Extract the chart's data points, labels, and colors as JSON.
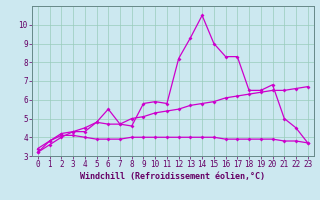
{
  "title": "",
  "xlabel": "Windchill (Refroidissement éolien,°C)",
  "ylabel": "",
  "bg_color": "#cce8f0",
  "grid_color": "#99ccbb",
  "line_color": "#cc00cc",
  "xlim": [
    -0.5,
    23.5
  ],
  "ylim": [
    3,
    11
  ],
  "yticks": [
    3,
    4,
    5,
    6,
    7,
    8,
    9,
    10
  ],
  "xticks": [
    0,
    1,
    2,
    3,
    4,
    5,
    6,
    7,
    8,
    9,
    10,
    11,
    12,
    13,
    14,
    15,
    16,
    17,
    18,
    19,
    20,
    21,
    22,
    23
  ],
  "line1_x": [
    0,
    1,
    2,
    3,
    4,
    5,
    6,
    7,
    8,
    9,
    10,
    11,
    12,
    13,
    14,
    15,
    16,
    17,
    18,
    19,
    20,
    21,
    22,
    23
  ],
  "line1_y": [
    3.2,
    3.8,
    4.2,
    4.3,
    4.3,
    4.8,
    5.5,
    4.7,
    4.6,
    5.8,
    5.9,
    5.8,
    8.2,
    9.3,
    10.5,
    9.0,
    8.3,
    8.3,
    6.5,
    6.5,
    6.8,
    5.0,
    4.5,
    3.7
  ],
  "line2_x": [
    0,
    1,
    2,
    3,
    4,
    5,
    6,
    7,
    8,
    9,
    10,
    11,
    12,
    13,
    14,
    15,
    16,
    17,
    18,
    19,
    20,
    21,
    22,
    23
  ],
  "line2_y": [
    3.2,
    3.6,
    4.0,
    4.3,
    4.5,
    4.8,
    4.7,
    4.7,
    5.0,
    5.1,
    5.3,
    5.4,
    5.5,
    5.7,
    5.8,
    5.9,
    6.1,
    6.2,
    6.3,
    6.4,
    6.5,
    6.5,
    6.6,
    6.7
  ],
  "line3_x": [
    0,
    1,
    2,
    3,
    4,
    5,
    6,
    7,
    8,
    9,
    10,
    11,
    12,
    13,
    14,
    15,
    16,
    17,
    18,
    19,
    20,
    21,
    22,
    23
  ],
  "line3_y": [
    3.4,
    3.8,
    4.1,
    4.1,
    4.0,
    3.9,
    3.9,
    3.9,
    4.0,
    4.0,
    4.0,
    4.0,
    4.0,
    4.0,
    4.0,
    4.0,
    3.9,
    3.9,
    3.9,
    3.9,
    3.9,
    3.8,
    3.8,
    3.7
  ],
  "marker": "D",
  "markersize": 2.0,
  "linewidth": 0.9,
  "xlabel_fontsize": 6,
  "tick_fontsize": 5.5,
  "xlabel_color": "#660066",
  "tick_color": "#660066",
  "spine_color": "#668888"
}
